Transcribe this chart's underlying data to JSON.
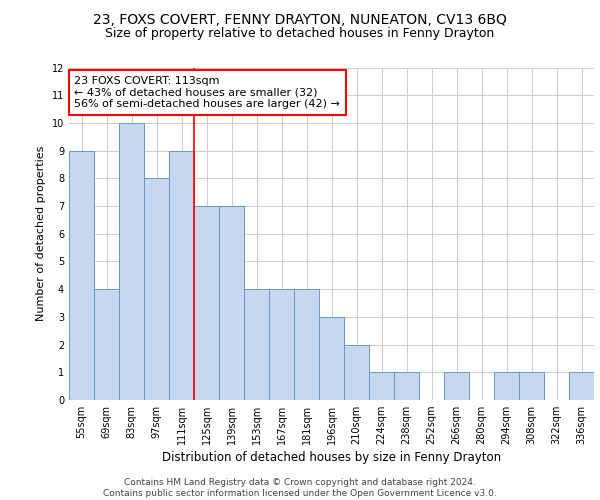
{
  "title1": "23, FOXS COVERT, FENNY DRAYTON, NUNEATON, CV13 6BQ",
  "title2": "Size of property relative to detached houses in Fenny Drayton",
  "xlabel": "Distribution of detached houses by size in Fenny Drayton",
  "ylabel": "Number of detached properties",
  "footer1": "Contains HM Land Registry data © Crown copyright and database right 2024.",
  "footer2": "Contains public sector information licensed under the Open Government Licence v3.0.",
  "categories": [
    "55sqm",
    "69sqm",
    "83sqm",
    "97sqm",
    "111sqm",
    "125sqm",
    "139sqm",
    "153sqm",
    "167sqm",
    "181sqm",
    "196sqm",
    "210sqm",
    "224sqm",
    "238sqm",
    "252sqm",
    "266sqm",
    "280sqm",
    "294sqm",
    "308sqm",
    "322sqm",
    "336sqm"
  ],
  "values": [
    9,
    4,
    10,
    8,
    9,
    7,
    7,
    4,
    4,
    4,
    3,
    2,
    1,
    1,
    0,
    1,
    0,
    1,
    1,
    0,
    1
  ],
  "bar_color": "#c5d8ed",
  "bar_edge_color": "#6699cc",
  "annotation_line1": "23 FOXS COVERT: 113sqm",
  "annotation_line2": "← 43% of detached houses are smaller (32)",
  "annotation_line3": "56% of semi-detached houses are larger (42) →",
  "annotation_box_color": "white",
  "annotation_box_edge_color": "red",
  "vertical_line_x": 4.5,
  "vertical_line_color": "red",
  "ylim": [
    0,
    12
  ],
  "yticks": [
    0,
    1,
    2,
    3,
    4,
    5,
    6,
    7,
    8,
    9,
    10,
    11,
    12
  ],
  "grid_color": "#cccccc",
  "background_color": "white",
  "title1_fontsize": 10,
  "title2_fontsize": 9,
  "xlabel_fontsize": 8.5,
  "ylabel_fontsize": 8,
  "tick_fontsize": 7,
  "annotation_fontsize": 8,
  "footer_fontsize": 6.5
}
